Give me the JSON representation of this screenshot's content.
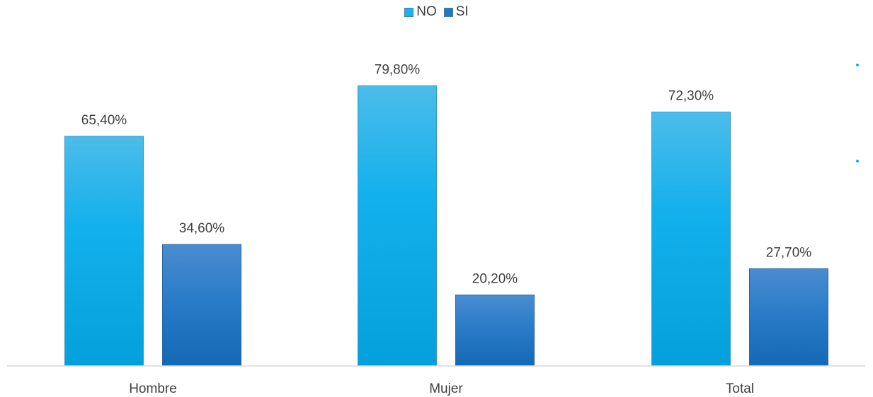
{
  "chart_data": {
    "type": "bar",
    "categories": [
      "Hombre",
      "Mujer",
      "Total"
    ],
    "series": [
      {
        "name": "NO",
        "values": [
          65.4,
          79.8,
          72.3
        ],
        "labels": [
          "65,40%",
          "79,80%",
          "72,30%"
        ]
      },
      {
        "name": "SI",
        "values": [
          34.6,
          20.2,
          27.7
        ],
        "labels": [
          "34,60%",
          "20,20%",
          "27,70%"
        ]
      }
    ],
    "ylim": [
      0,
      100
    ],
    "grid": false,
    "legend_position": "top-center",
    "colors": {
      "NO": "#19b2ea",
      "SI": "#2478c4"
    }
  }
}
